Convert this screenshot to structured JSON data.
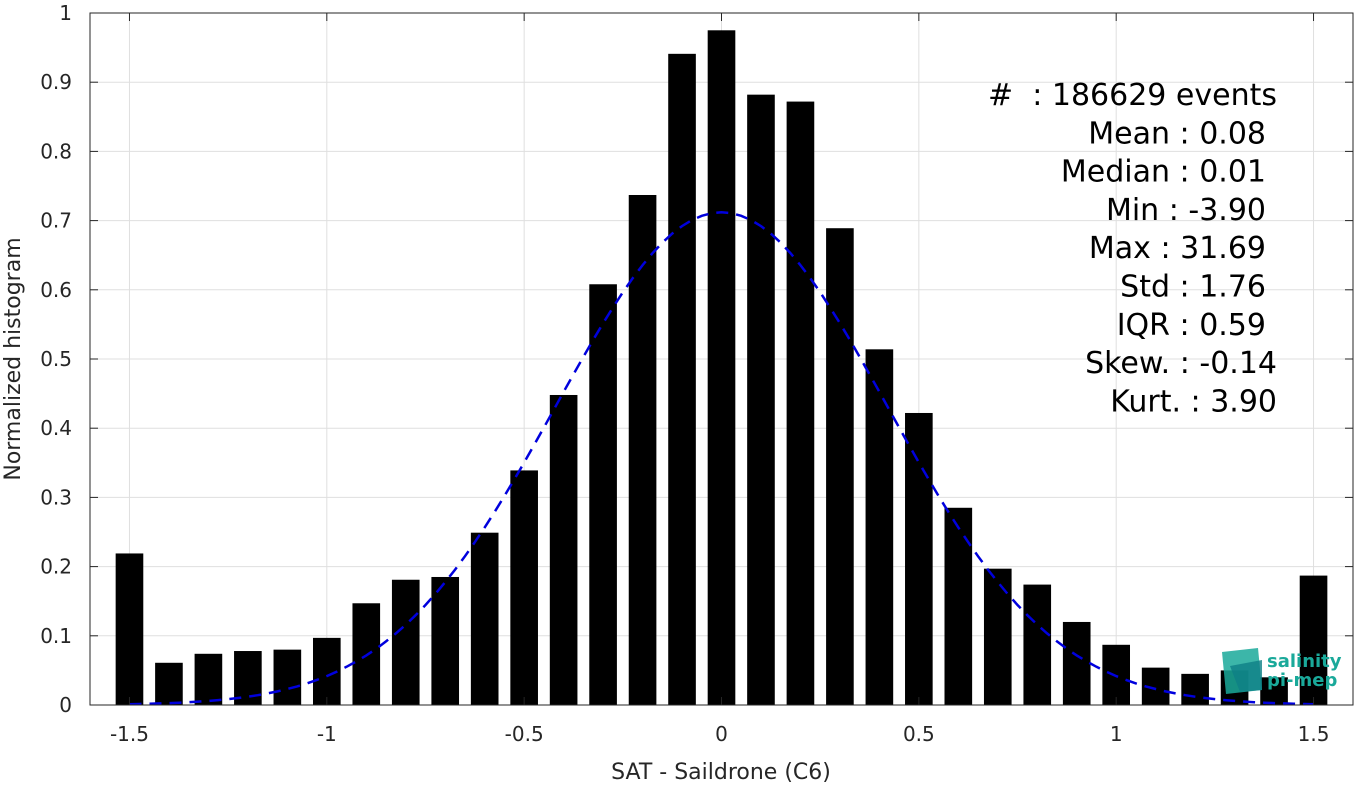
{
  "chart_data": {
    "type": "bar",
    "xlabel": "SAT - Saildrone (C6)",
    "ylabel": "Normalized histogram",
    "xlim": [
      -1.6,
      1.6
    ],
    "ylim": [
      0,
      1
    ],
    "grid": true,
    "x_ticks": [
      -1.5,
      -1,
      -0.5,
      0,
      0.5,
      1,
      1.5
    ],
    "x_tick_labels": [
      "-1.5",
      "-1",
      "-0.5",
      "0",
      "0.5",
      "1",
      "1.5"
    ],
    "y_ticks": [
      0,
      0.1,
      0.2,
      0.3,
      0.4,
      0.5,
      0.6,
      0.7,
      0.8,
      0.9,
      1
    ],
    "y_tick_labels": [
      "0",
      "0.1",
      "0.2",
      "0.3",
      "0.4",
      "0.5",
      "0.6",
      "0.7",
      "0.8",
      "0.9",
      "1"
    ],
    "bar_color": "#000000",
    "bar_width": 0.07,
    "x": [
      -1.5,
      -1.4,
      -1.3,
      -1.2,
      -1.1,
      -1.0,
      -0.9,
      -0.8,
      -0.7,
      -0.6,
      -0.5,
      -0.4,
      -0.3,
      -0.2,
      -0.1,
      0.0,
      0.1,
      0.2,
      0.3,
      0.4,
      0.5,
      0.6,
      0.7,
      0.8,
      0.9,
      1.0,
      1.1,
      1.2,
      1.3,
      1.4,
      1.5
    ],
    "values": [
      0.219,
      0.061,
      0.074,
      0.078,
      0.08,
      0.097,
      0.147,
      0.181,
      0.185,
      0.249,
      0.339,
      0.448,
      0.608,
      0.737,
      0.941,
      0.975,
      0.882,
      0.872,
      0.689,
      0.514,
      0.422,
      0.285,
      0.197,
      0.174,
      0.12,
      0.087,
      0.054,
      0.045,
      0.05,
      0.04,
      0.187
    ],
    "fit_curve": {
      "type": "gaussian",
      "style": "dashed",
      "color": "#0000dd",
      "peak": 0.712,
      "mean": 0.0,
      "sigma": 0.42,
      "x_range": [
        -1.5,
        1.5
      ]
    },
    "stats_annotation": [
      "#  : 186629 events",
      "Mean : 0.08",
      "Median : 0.01",
      "Min : -3.90",
      "Max : 31.69",
      "Std : 1.76",
      "IQR : 0.59",
      "Skew. : -0.14",
      "Kurt. : 3.90"
    ]
  },
  "logo": {
    "line1": "salinity",
    "line2": "pi-mep",
    "color": "#1aa99a"
  }
}
